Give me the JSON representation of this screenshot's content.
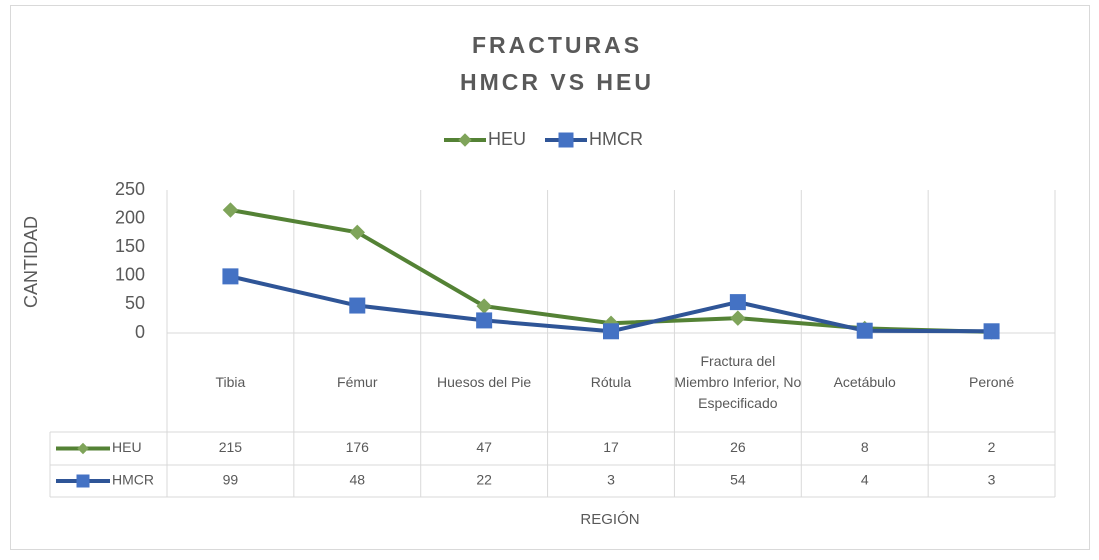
{
  "chart_data": {
    "type": "line",
    "title": "FRACTURAS",
    "subtitle": "HMCR VS HEU",
    "x_label": "REGIÓN",
    "y_label": "CANTIDAD",
    "categories": [
      "Tibia",
      "Fémur",
      "Huesos del Pie",
      "Rótula",
      "Fractura del Miembro Inferior, No Especificado",
      "Acetábulo",
      "Peroné"
    ],
    "series": [
      {
        "name": "HEU",
        "color": "#548235",
        "marker": "diamond",
        "marker_color": "#7fa45a",
        "values": [
          215,
          176,
          47,
          17,
          26,
          8,
          2
        ]
      },
      {
        "name": "HMCR",
        "color": "#2f5597",
        "marker": "square",
        "marker_color": "#4472c4",
        "values": [
          99,
          48,
          22,
          3,
          54,
          4,
          3
        ]
      }
    ],
    "ylim": [
      0,
      250
    ],
    "yticks": [
      0,
      50,
      100,
      150,
      200,
      250
    ],
    "grid": false,
    "legend": "top",
    "data_table": true
  }
}
